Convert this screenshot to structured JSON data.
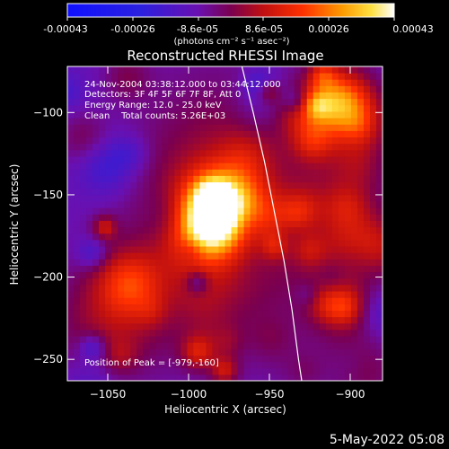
{
  "colorbar": {
    "ticks": [
      "-0.00043",
      "-0.00026",
      "-8.6e-05",
      "8.6e-05",
      "0.00026",
      "0.00043"
    ],
    "unit_label": "(photons cm⁻² s⁻¹ asec⁻²)",
    "range": [
      -0.00043,
      0.00043
    ]
  },
  "chart_data": {
    "type": "heatmap",
    "title": "Reconstructed RHESSI Image",
    "xlabel": "Heliocentric X (arcsec)",
    "ylabel": "Heliocentric Y (arcsec)",
    "xlim": [
      -1075,
      -880
    ],
    "ylim": [
      -263,
      -72
    ],
    "xticks": [
      -1050,
      -1000,
      -950,
      -900
    ],
    "yticks": [
      -100,
      -150,
      -200,
      -250
    ],
    "xtick_labels": [
      "−1050",
      "−1000",
      "−950",
      "−900"
    ],
    "ytick_labels": [
      "−100",
      "−150",
      "−200",
      "−250"
    ],
    "peak": [
      -979,
      -160
    ],
    "annotations": {
      "time": "24-Nov-2004 03:38:12.000 to 03:44:12.000",
      "detectors": "Detectors: 3F 4F 5F 6F 7F 8F, Att 0",
      "energy": "Energy Range: 12.0 - 25.0 keV",
      "clean": "Clean    Total counts: 5.26E+03",
      "peak_label": "Position of Peak = [-979,-160]"
    },
    "limb_curve": [
      [
        -967,
        -72
      ],
      [
        -960,
        -100
      ],
      [
        -953,
        -130
      ],
      [
        -947,
        -160
      ],
      [
        -941,
        -190
      ],
      [
        -936,
        -220
      ],
      [
        -932,
        -250
      ],
      [
        -930,
        -263
      ]
    ]
  },
  "footer": {
    "date": "5-May-2022 05:08"
  }
}
